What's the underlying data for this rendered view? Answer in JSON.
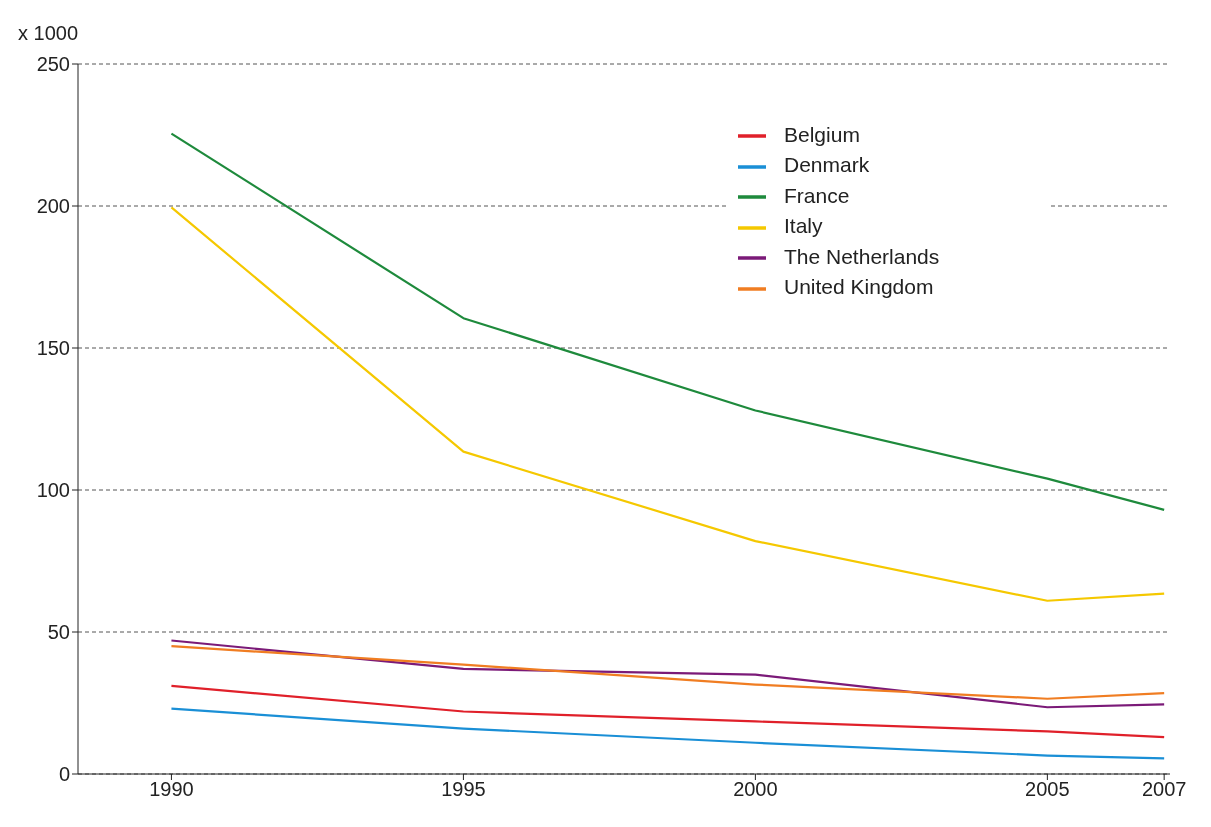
{
  "chart_data": {
    "type": "line",
    "ylabel": "x 1000",
    "x": [
      1990,
      1995,
      2000,
      2005,
      2007
    ],
    "series": [
      {
        "name": "Belgium",
        "color": "#e0202a",
        "values": [
          31,
          22,
          18.5,
          15,
          13
        ]
      },
      {
        "name": "Denmark",
        "color": "#1a8fd6",
        "values": [
          23,
          16,
          11,
          6.5,
          5.5
        ]
      },
      {
        "name": "France",
        "color": "#1e8a3c",
        "values": [
          225.5,
          160.5,
          128,
          104,
          93
        ]
      },
      {
        "name": "Italy",
        "color": "#f5c800",
        "values": [
          199.5,
          113.5,
          82,
          61,
          63.5
        ]
      },
      {
        "name": "The Netherlands",
        "color": "#7b1a78",
        "values": [
          47,
          37,
          35,
          23.5,
          24.5
        ]
      },
      {
        "name": "United Kingdom",
        "color": "#f07d22",
        "values": [
          45,
          38.5,
          31.5,
          26.5,
          28.5
        ]
      }
    ],
    "xlim": [
      1988.4,
      2007.1
    ],
    "xticks": [
      1990,
      1995,
      2000,
      2005,
      2007
    ],
    "ylim": [
      0,
      250
    ],
    "yticks": [
      0,
      50,
      100,
      150,
      200,
      250
    ],
    "grid": "y",
    "legend": "top right",
    "marker": "none",
    "line_style": "solid"
  }
}
